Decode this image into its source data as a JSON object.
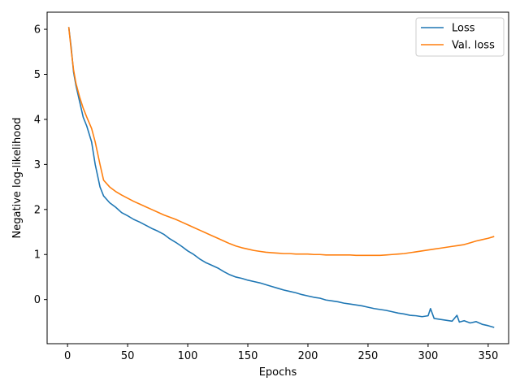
{
  "chart_data": {
    "type": "line",
    "title": "",
    "xlabel": "Epochs",
    "ylabel": "Negative log-likelihood",
    "xlim": [
      -17,
      367
    ],
    "ylim": [
      -0.98,
      6.38
    ],
    "xticks": [
      0,
      50,
      100,
      150,
      200,
      250,
      300,
      350
    ],
    "yticks": [
      0,
      1,
      2,
      3,
      4,
      5,
      6
    ],
    "grid": false,
    "legend_position": "top-right",
    "series": [
      {
        "name": "Loss",
        "color": "#1f77b4",
        "x": [
          1,
          3,
          5,
          7,
          10,
          13,
          16,
          20,
          23,
          25,
          27,
          30,
          35,
          40,
          45,
          50,
          55,
          60,
          65,
          70,
          75,
          80,
          85,
          90,
          95,
          100,
          105,
          110,
          115,
          120,
          125,
          130,
          135,
          140,
          145,
          150,
          155,
          160,
          165,
          170,
          175,
          180,
          185,
          190,
          195,
          200,
          205,
          210,
          215,
          220,
          225,
          230,
          235,
          240,
          245,
          250,
          255,
          260,
          265,
          270,
          275,
          280,
          285,
          290,
          295,
          300,
          302,
          305,
          310,
          315,
          320,
          324,
          326,
          330,
          335,
          340,
          345,
          350,
          355
        ],
        "values": [
          6.05,
          5.6,
          5.05,
          4.75,
          4.4,
          4.05,
          3.85,
          3.5,
          3.0,
          2.75,
          2.5,
          2.3,
          2.15,
          2.05,
          1.93,
          1.86,
          1.78,
          1.72,
          1.65,
          1.58,
          1.52,
          1.45,
          1.35,
          1.27,
          1.18,
          1.08,
          1.0,
          0.9,
          0.82,
          0.76,
          0.7,
          0.62,
          0.55,
          0.5,
          0.47,
          0.43,
          0.4,
          0.37,
          0.33,
          0.29,
          0.25,
          0.21,
          0.18,
          0.15,
          0.11,
          0.08,
          0.05,
          0.03,
          -0.01,
          -0.03,
          -0.05,
          -0.08,
          -0.1,
          -0.12,
          -0.14,
          -0.17,
          -0.2,
          -0.22,
          -0.24,
          -0.27,
          -0.3,
          -0.32,
          -0.35,
          -0.36,
          -0.38,
          -0.36,
          -0.2,
          -0.42,
          -0.44,
          -0.46,
          -0.48,
          -0.35,
          -0.5,
          -0.47,
          -0.52,
          -0.49,
          -0.55,
          -0.58,
          -0.62
        ]
      },
      {
        "name": "Val. loss",
        "color": "#ff7f0e",
        "x": [
          1,
          3,
          5,
          7,
          10,
          13,
          16,
          20,
          23,
          25,
          27,
          30,
          35,
          40,
          45,
          50,
          55,
          60,
          65,
          70,
          75,
          80,
          85,
          90,
          95,
          100,
          105,
          110,
          115,
          120,
          125,
          130,
          135,
          140,
          145,
          150,
          155,
          160,
          165,
          170,
          175,
          180,
          185,
          190,
          195,
          200,
          205,
          210,
          215,
          220,
          225,
          230,
          235,
          240,
          245,
          250,
          255,
          260,
          265,
          270,
          275,
          280,
          285,
          290,
          295,
          300,
          305,
          310,
          315,
          320,
          325,
          330,
          335,
          340,
          345,
          350,
          355
        ],
        "values": [
          6.05,
          5.55,
          5.1,
          4.8,
          4.5,
          4.25,
          4.05,
          3.8,
          3.5,
          3.25,
          3.0,
          2.65,
          2.5,
          2.4,
          2.32,
          2.25,
          2.18,
          2.12,
          2.06,
          2.0,
          1.94,
          1.88,
          1.83,
          1.78,
          1.72,
          1.66,
          1.6,
          1.54,
          1.48,
          1.42,
          1.36,
          1.3,
          1.24,
          1.19,
          1.15,
          1.12,
          1.09,
          1.07,
          1.05,
          1.04,
          1.03,
          1.02,
          1.02,
          1.01,
          1.01,
          1.01,
          1.0,
          1.0,
          0.99,
          0.99,
          0.99,
          0.99,
          0.99,
          0.98,
          0.98,
          0.98,
          0.98,
          0.98,
          0.99,
          1.0,
          1.01,
          1.02,
          1.04,
          1.06,
          1.08,
          1.1,
          1.12,
          1.14,
          1.16,
          1.18,
          1.2,
          1.22,
          1.26,
          1.3,
          1.33,
          1.36,
          1.4
        ]
      }
    ]
  }
}
